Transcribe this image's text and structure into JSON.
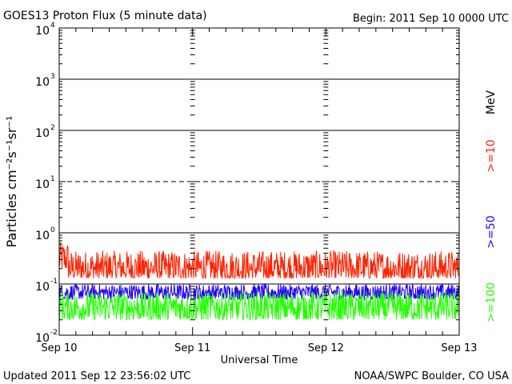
{
  "header": {
    "title": "GOES13 Proton Flux (5 minute data)",
    "begin": "Begin: 2011 Sep 10 0000 UTC"
  },
  "footer": {
    "updated": "Updated 2011 Sep 12 23:56:02 UTC",
    "credit": "NOAA/SWPC Boulder, CO USA"
  },
  "chart_data": {
    "type": "line",
    "title": "GOES13 Proton Flux (5 minute data)",
    "xlabel": "Universal Time",
    "ylabel": "Particles cm⁻²s⁻¹sr⁻¹",
    "y_scale": "log",
    "ylim": [
      0.01,
      10000
    ],
    "xlim": [
      "2011-09-10 00:00",
      "2011-09-13 00:00"
    ],
    "x_ticks": [
      "Sep 10",
      "Sep 11",
      "Sep 12",
      "Sep 13"
    ],
    "y_ticks": [
      {
        "base": "10",
        "exp": "-2"
      },
      {
        "base": "10",
        "exp": "-1"
      },
      {
        "base": "10",
        "exp": "0"
      },
      {
        "base": "10",
        "exp": "1"
      },
      {
        "base": "10",
        "exp": "2"
      },
      {
        "base": "10",
        "exp": "3"
      },
      {
        "base": "10",
        "exp": "4"
      }
    ],
    "thresholds": [
      0.1,
      1,
      10,
      100,
      1000
    ],
    "dashed_threshold": 10,
    "legend_unit": "MeV",
    "series": [
      {
        "name": ">=10",
        "color": "#ff2200",
        "typical_range": [
          0.1,
          0.45
        ]
      },
      {
        "name": ">=50",
        "color": "#2200ff",
        "typical_range": [
          0.05,
          0.1
        ]
      },
      {
        "name": ">=100",
        "color": "#22ff00",
        "typical_range": [
          0.02,
          0.07
        ]
      }
    ]
  }
}
